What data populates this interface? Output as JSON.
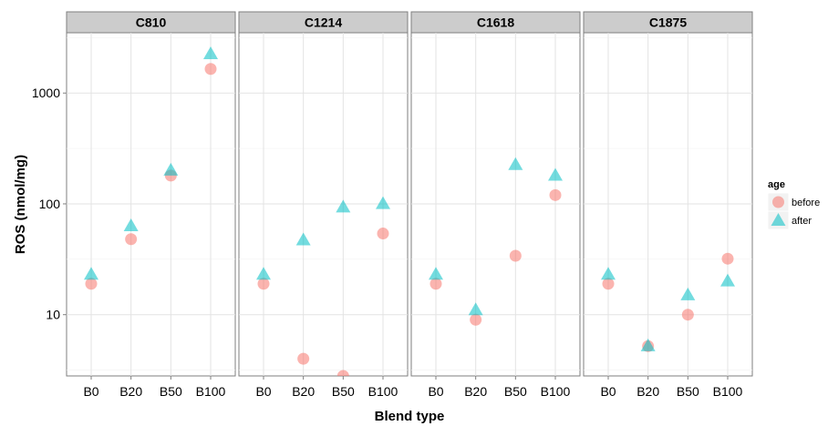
{
  "chart_data": {
    "type": "scatter",
    "facets": [
      "C810",
      "C1214",
      "C1618",
      "C1875"
    ],
    "categories": [
      "B0",
      "B20",
      "B50",
      "B100"
    ],
    "xlabel": "Blend type",
    "ylabel": "ROS (nmol/mg)",
    "y_scale": "log10",
    "ylim": [
      2.8,
      3500
    ],
    "y_ticks": [
      10,
      100,
      1000
    ],
    "y_tick_labels": [
      "10",
      "100",
      "1000"
    ],
    "grid": true,
    "legend": {
      "title": "age",
      "position": "right",
      "entries": [
        "before",
        "after"
      ]
    },
    "colors": {
      "before": "#F8766D",
      "after": "#00BFC4"
    },
    "series": [
      {
        "name": "before",
        "marker": "circle",
        "values": {
          "C810": [
            19,
            48,
            180,
            1650
          ],
          "C1214": [
            19,
            4,
            2.8,
            54
          ],
          "C1618": [
            19,
            9,
            34,
            120
          ],
          "C1875": [
            19,
            5.2,
            10,
            32
          ]
        }
      },
      {
        "name": "after",
        "marker": "triangle",
        "values": {
          "C810": [
            23,
            63,
            200,
            2250
          ],
          "C1214": [
            23,
            47,
            93,
            100
          ],
          "C1618": [
            23,
            11,
            225,
            180
          ],
          "C1875": [
            23,
            5.2,
            15,
            20
          ]
        }
      }
    ]
  }
}
